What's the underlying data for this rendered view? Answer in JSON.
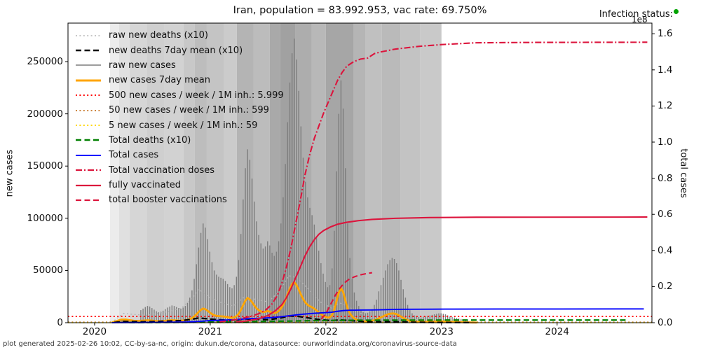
{
  "title": "Iran, population = 83.992.953, vac rate: 69.750%",
  "infection_status": {
    "label": "Infection status:",
    "dot_color": "#00a300"
  },
  "axis_offset_label": "1e8",
  "footer": "plot generated 2025-02-26 10:02, CC-by-sa-nc, origin: dukun.de/corona, datasource: ourworldindata.org/coronavirus-source-data",
  "chart_data": {
    "type": "line",
    "title": "Iran, population = 83.992.953, vac rate: 69.750%",
    "grid": false,
    "legend_position": "upper left",
    "x_axis": {
      "lim": [
        2019.77,
        2024.82
      ],
      "ticks": [
        2020,
        2021,
        2022,
        2023,
        2024
      ],
      "tick_labels": [
        "2020",
        "2021",
        "2022",
        "2023",
        "2024"
      ]
    },
    "left_axis": {
      "label": "new cases",
      "lim": [
        0,
        286900
      ],
      "ticks": [
        0,
        50000,
        100000,
        150000,
        200000,
        250000
      ],
      "tick_labels": [
        "0",
        "50000",
        "100000",
        "150000",
        "200000",
        "250000"
      ]
    },
    "right_axis": {
      "label": "total cases",
      "unit": "1e8",
      "lim": [
        0,
        1.659
      ],
      "ticks": [
        0.0,
        0.2,
        0.4,
        0.6,
        0.8,
        1.0,
        1.2,
        1.4,
        1.6
      ],
      "tick_labels": [
        "0.0",
        "0.2",
        "0.4",
        "0.6",
        "0.8",
        "1.0",
        "1.2",
        "1.4",
        "1.6"
      ]
    },
    "legend": [
      {
        "label": "raw new deaths (x10)",
        "color": "#b3b3b3",
        "style": "dotted",
        "width": 1.4
      },
      {
        "label": "new deaths 7day mean (x10)",
        "color": "#000000",
        "style": "dashed",
        "width": 2.6
      },
      {
        "label": "raw new cases",
        "color": "#7d7d7d",
        "style": "solid",
        "width": 1.6
      },
      {
        "label": "new cases 7day mean",
        "color": "#ffa500",
        "style": "solid",
        "width": 3.0
      },
      {
        "label": "500 new cases / week / 1M inh.: 5.999",
        "color": "#ff0000",
        "style": "dotted",
        "width": 2.0
      },
      {
        "label": "50 new cases / week / 1M inh.: 599",
        "color": "#cd853f",
        "style": "dotted",
        "width": 2.0
      },
      {
        "label": "5 new cases / week / 1M inh.: 59",
        "color": "#ffd700",
        "style": "dotted",
        "width": 2.0
      },
      {
        "label": "Total deaths (x10)",
        "color": "#008000",
        "style": "dashed",
        "width": 2.4
      },
      {
        "label": "Total cases",
        "color": "#0000ff",
        "style": "solid",
        "width": 2.0
      },
      {
        "label": "Total vaccination doses",
        "color": "#dc143c",
        "style": "dashdot",
        "width": 2.2
      },
      {
        "label": "fully vaccinated",
        "color": "#dc143c",
        "style": "solid",
        "width": 2.2
      },
      {
        "label": "total booster vaccinations",
        "color": "#dc143c",
        "style": "dashed",
        "width": 2.2
      }
    ],
    "thresholds_left_axis": [
      {
        "label": "500 new cases / week / 1M inh.",
        "value": 5999,
        "color": "#ff0000"
      },
      {
        "label": "50 new cases / week / 1M inh.",
        "value": 599,
        "color": "#cd853f"
      },
      {
        "label": "5 new cases / week / 1M inh.",
        "value": 59,
        "color": "#ffd700"
      }
    ],
    "background_bands": [
      {
        "from": 2020.133,
        "to": 2020.212,
        "color": "#ececec"
      },
      {
        "from": 2020.212,
        "to": 2020.303,
        "color": "#e0e0e0"
      },
      {
        "from": 2020.303,
        "to": 2020.455,
        "color": "#d6d6d6"
      },
      {
        "from": 2020.455,
        "to": 2020.606,
        "color": "#cfcfcf"
      },
      {
        "from": 2020.606,
        "to": 2020.77,
        "color": "#d2d2d2"
      },
      {
        "from": 2020.77,
        "to": 2020.867,
        "color": "#c8c8c8"
      },
      {
        "from": 2020.867,
        "to": 2020.97,
        "color": "#bdbdbd"
      },
      {
        "from": 2020.97,
        "to": 2021.121,
        "color": "#c4c4c4"
      },
      {
        "from": 2021.121,
        "to": 2021.23,
        "color": "#cbcbcb"
      },
      {
        "from": 2021.23,
        "to": 2021.376,
        "color": "#b4b4b4"
      },
      {
        "from": 2021.376,
        "to": 2021.515,
        "color": "#bcbcbc"
      },
      {
        "from": 2021.515,
        "to": 2021.606,
        "color": "#a9a9a9"
      },
      {
        "from": 2021.606,
        "to": 2021.739,
        "color": "#a1a1a1"
      },
      {
        "from": 2021.739,
        "to": 2021.879,
        "color": "#adadad"
      },
      {
        "from": 2021.879,
        "to": 2022.0,
        "color": "#b8b8b8"
      },
      {
        "from": 2022.0,
        "to": 2022.242,
        "color": "#a6a6a6"
      },
      {
        "from": 2022.242,
        "to": 2022.345,
        "color": "#b5b5b5"
      },
      {
        "from": 2022.345,
        "to": 2022.485,
        "color": "#c0c0c0"
      },
      {
        "from": 2022.485,
        "to": 2022.648,
        "color": "#bababa"
      },
      {
        "from": 2022.648,
        "to": 2022.818,
        "color": "#c3c3c3"
      },
      {
        "from": 2022.818,
        "to": 2023.0,
        "color": "#c9c9c9"
      }
    ],
    "series": {
      "raw_new_cases_daily_early": {
        "axis": "left",
        "color": "#7d7d7d",
        "render": "area",
        "points": [
          [
            2020.15,
            300
          ],
          [
            2020.19,
            1500
          ],
          [
            2020.23,
            3000
          ],
          [
            2020.27,
            3100
          ],
          [
            2020.31,
            2300
          ],
          [
            2020.35,
            1700
          ],
          [
            2020.4,
            1900
          ]
        ]
      },
      "raw_new_cases_weekly": {
        "axis": "left",
        "color": "#7d7d7d",
        "render": "bars",
        "start_year": 2020.4,
        "step_years": 0.019231,
        "values": [
          12000,
          13500,
          15000,
          16000,
          15500,
          14000,
          12500,
          11000,
          10000,
          10500,
          11500,
          13000,
          14500,
          15500,
          16500,
          16000,
          15000,
          14000,
          13500,
          14500,
          16000,
          19000,
          24000,
          31000,
          42000,
          56000,
          72000,
          86000,
          95000,
          91000,
          80000,
          68000,
          58000,
          50000,
          46000,
          44000,
          43000,
          42000,
          40000,
          37000,
          34000,
          33000,
          36000,
          44000,
          60000,
          85000,
          118000,
          148000,
          166000,
          156000,
          138000,
          116000,
          97000,
          84000,
          76000,
          71000,
          73000,
          78000,
          74000,
          67000,
          64000,
          68000,
          78000,
          95000,
          120000,
          152000,
          192000,
          230000,
          258000,
          272000,
          252000,
          222000,
          188000,
          158000,
          135000,
          120000,
          110000,
          103000,
          94000,
          82000,
          69000,
          57000,
          47000,
          39000,
          34000,
          36000,
          52000,
          88000,
          145000,
          200000,
          232000,
          205000,
          148000,
          95000,
          62000,
          42000,
          29000,
          21000,
          16000,
          12000,
          10000,
          9000,
          9500,
          11000,
          13000,
          17000,
          22000,
          30000,
          36000,
          43000,
          50000,
          56000,
          60000,
          62000,
          61000,
          57000,
          50000,
          41000,
          32000,
          24000,
          17000,
          12000,
          9000,
          7000,
          6000,
          5500,
          5000,
          5500,
          6000,
          6500,
          7000,
          7500,
          8000,
          8500,
          9000,
          9000,
          8500,
          8000,
          7000,
          6000,
          5500,
          5000,
          4500,
          4000,
          3500,
          3000,
          2500,
          2000,
          1600,
          1300,
          1000,
          800
        ]
      },
      "new_cases_7day_mean": {
        "axis": "left",
        "color": "#ffa500",
        "derived_from": "raw_new_cases_weekly",
        "factor": 0.142857
      },
      "raw_new_deaths_x10": {
        "axis": "left",
        "color": "#b3b3b3",
        "style": "dotted",
        "points": [
          [
            2020.17,
            2000
          ],
          [
            2020.25,
            9000
          ],
          [
            2020.33,
            8000
          ],
          [
            2020.45,
            7000
          ],
          [
            2020.55,
            9000
          ],
          [
            2020.65,
            11000
          ],
          [
            2020.75,
            14000
          ],
          [
            2020.85,
            24000
          ],
          [
            2020.9,
            32000
          ],
          [
            2021.0,
            24000
          ],
          [
            2021.1,
            19000
          ],
          [
            2021.2,
            16000
          ],
          [
            2021.3,
            25000
          ],
          [
            2021.4,
            22000
          ],
          [
            2021.5,
            20000
          ],
          [
            2021.6,
            30000
          ],
          [
            2021.68,
            45000
          ],
          [
            2021.75,
            43000
          ],
          [
            2021.85,
            32000
          ],
          [
            2021.95,
            20000
          ],
          [
            2022.05,
            14000
          ],
          [
            2022.12,
            19000
          ],
          [
            2022.2,
            15000
          ],
          [
            2022.3,
            9000
          ],
          [
            2022.4,
            5000
          ],
          [
            2022.55,
            6500
          ],
          [
            2022.7,
            4000
          ],
          [
            2022.9,
            2000
          ],
          [
            2023.1,
            1500
          ],
          [
            2023.25,
            800
          ]
        ]
      },
      "new_deaths_7day_mean_x10": {
        "axis": "left",
        "color": "#000000",
        "style": "dashed",
        "derived_from": "raw_new_deaths_x10",
        "factor": 0.142857
      },
      "total_deaths_x10": {
        "axis": "right",
        "color": "#008000",
        "style": "dashed",
        "points": [
          [
            2020.3,
            0.0002
          ],
          [
            2020.5,
            0.001
          ],
          [
            2020.8,
            0.0018
          ],
          [
            2021.0,
            0.0055
          ],
          [
            2021.3,
            0.0062
          ],
          [
            2021.5,
            0.0075
          ],
          [
            2021.7,
            0.009
          ],
          [
            2021.9,
            0.0115
          ],
          [
            2022.1,
            0.0127
          ],
          [
            2022.3,
            0.0137
          ],
          [
            2022.6,
            0.0141
          ],
          [
            2023.0,
            0.0144
          ],
          [
            2023.5,
            0.0145
          ],
          [
            2024.6,
            0.0146
          ]
        ]
      },
      "total_cases": {
        "axis": "right",
        "color": "#0000ff",
        "style": "solid",
        "points": [
          [
            2020.15,
            0.0002
          ],
          [
            2020.4,
            0.001
          ],
          [
            2020.6,
            0.002
          ],
          [
            2020.8,
            0.004
          ],
          [
            2020.9,
            0.007
          ],
          [
            2021.0,
            0.012
          ],
          [
            2021.1,
            0.014
          ],
          [
            2021.2,
            0.016
          ],
          [
            2021.3,
            0.021
          ],
          [
            2021.4,
            0.024
          ],
          [
            2021.5,
            0.027
          ],
          [
            2021.6,
            0.032
          ],
          [
            2021.7,
            0.04
          ],
          [
            2021.8,
            0.047
          ],
          [
            2021.9,
            0.052
          ],
          [
            2022.0,
            0.056
          ],
          [
            2022.05,
            0.058
          ],
          [
            2022.1,
            0.063
          ],
          [
            2022.15,
            0.067
          ],
          [
            2022.2,
            0.069
          ],
          [
            2022.3,
            0.07
          ],
          [
            2022.4,
            0.0705
          ],
          [
            2022.5,
            0.072
          ],
          [
            2022.6,
            0.074
          ],
          [
            2022.7,
            0.0745
          ],
          [
            2022.9,
            0.075
          ],
          [
            2023.1,
            0.0755
          ],
          [
            2023.5,
            0.0758
          ],
          [
            2024.0,
            0.076
          ],
          [
            2024.75,
            0.0762
          ]
        ]
      },
      "total_vaccination_doses": {
        "axis": "right",
        "color": "#dc143c",
        "style": "dashdot",
        "points": [
          [
            2021.08,
            0.005
          ],
          [
            2021.15,
            0.01
          ],
          [
            2021.25,
            0.02
          ],
          [
            2021.35,
            0.035
          ],
          [
            2021.42,
            0.05
          ],
          [
            2021.48,
            0.07
          ],
          [
            2021.53,
            0.1
          ],
          [
            2021.58,
            0.15
          ],
          [
            2021.62,
            0.22
          ],
          [
            2021.66,
            0.31
          ],
          [
            2021.7,
            0.42
          ],
          [
            2021.74,
            0.55
          ],
          [
            2021.78,
            0.68
          ],
          [
            2021.82,
            0.82
          ],
          [
            2021.86,
            0.93
          ],
          [
            2021.9,
            1.02
          ],
          [
            2021.94,
            1.09
          ],
          [
            2021.98,
            1.16
          ],
          [
            2022.02,
            1.22
          ],
          [
            2022.06,
            1.28
          ],
          [
            2022.1,
            1.34
          ],
          [
            2022.14,
            1.385
          ],
          [
            2022.18,
            1.42
          ],
          [
            2022.24,
            1.445
          ],
          [
            2022.3,
            1.46
          ],
          [
            2022.36,
            1.465
          ],
          [
            2022.42,
            1.49
          ],
          [
            2022.48,
            1.5
          ],
          [
            2022.6,
            1.515
          ],
          [
            2022.8,
            1.53
          ],
          [
            2023.0,
            1.54
          ],
          [
            2023.3,
            1.55
          ],
          [
            2023.8,
            1.552
          ],
          [
            2024.78,
            1.553
          ]
        ]
      },
      "fully_vaccinated": {
        "axis": "right",
        "color": "#dc143c",
        "style": "solid",
        "points": [
          [
            2021.22,
            0.003
          ],
          [
            2021.32,
            0.01
          ],
          [
            2021.42,
            0.022
          ],
          [
            2021.5,
            0.04
          ],
          [
            2021.56,
            0.065
          ],
          [
            2021.62,
            0.1
          ],
          [
            2021.66,
            0.14
          ],
          [
            2021.7,
            0.19
          ],
          [
            2021.74,
            0.25
          ],
          [
            2021.78,
            0.31
          ],
          [
            2021.82,
            0.37
          ],
          [
            2021.86,
            0.42
          ],
          [
            2021.9,
            0.46
          ],
          [
            2021.94,
            0.49
          ],
          [
            2021.98,
            0.51
          ],
          [
            2022.04,
            0.53
          ],
          [
            2022.1,
            0.545
          ],
          [
            2022.18,
            0.556
          ],
          [
            2022.28,
            0.565
          ],
          [
            2022.4,
            0.572
          ],
          [
            2022.6,
            0.578
          ],
          [
            2022.9,
            0.582
          ],
          [
            2023.3,
            0.584
          ],
          [
            2024.78,
            0.585
          ]
        ]
      },
      "total_booster_vaccinations": {
        "axis": "right",
        "color": "#dc143c",
        "style": "dashed",
        "points": [
          [
            2021.96,
            0.02
          ],
          [
            2022.0,
            0.05
          ],
          [
            2022.04,
            0.1
          ],
          [
            2022.08,
            0.15
          ],
          [
            2022.12,
            0.19
          ],
          [
            2022.16,
            0.22
          ],
          [
            2022.2,
            0.24
          ],
          [
            2022.25,
            0.255
          ],
          [
            2022.3,
            0.265
          ],
          [
            2022.35,
            0.272
          ],
          [
            2022.4,
            0.277
          ]
        ]
      }
    }
  }
}
